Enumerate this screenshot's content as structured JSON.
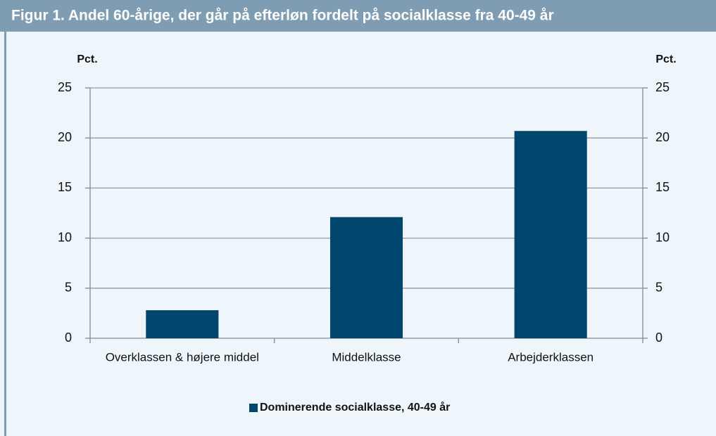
{
  "chart_data": {
    "type": "bar",
    "title": "Figur 1. Andel 60-årige, der går på efterløn fordelt på socialklasse fra 40-49 år",
    "y_label": "Pct.",
    "y2_label": "Pct.",
    "categories": [
      "Overklassen & højere middel",
      "Middelklasse",
      "Arbejderklassen"
    ],
    "series": [
      {
        "name": "Dominerende socialklasse, 40-49 år",
        "color": "#00456b",
        "values": [
          2.8,
          12.1,
          20.7
        ]
      }
    ],
    "ylim": [
      0,
      25
    ],
    "yticks": [
      0,
      5,
      10,
      15,
      20,
      25
    ],
    "y2lim": [
      0,
      25
    ],
    "y2ticks": [
      0,
      5,
      10,
      15,
      20,
      25
    ],
    "grid": true,
    "legend": "bottom"
  }
}
